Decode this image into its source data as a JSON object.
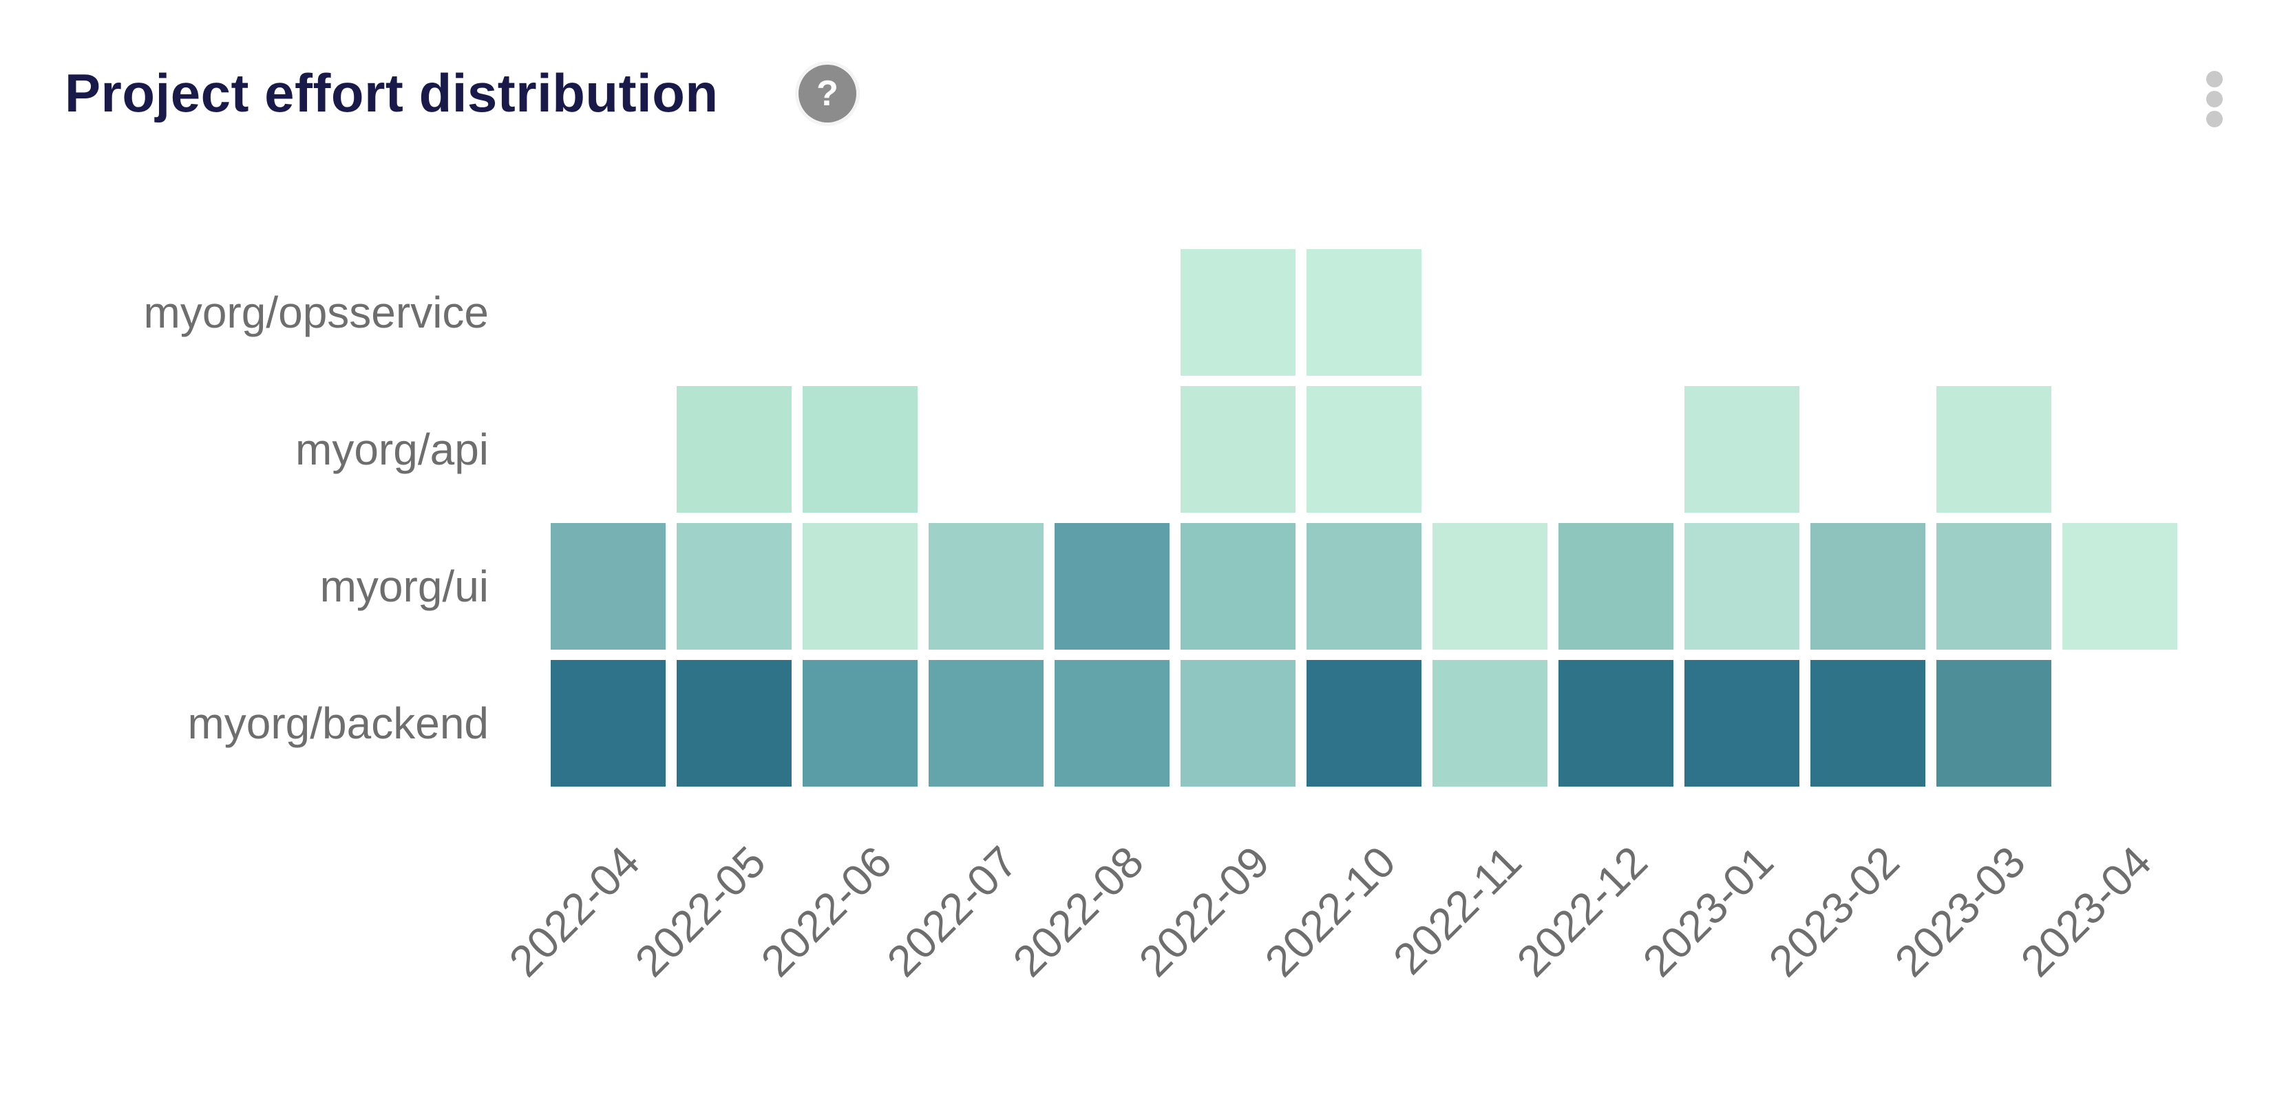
{
  "header": {
    "title": "Project effort distribution",
    "help_glyph": "?"
  },
  "colors": {
    "background": "#ffffff",
    "title_text": "#191a4a",
    "axis_label_text": "#6e6e6e",
    "help_badge_bg": "#8c8c8c",
    "help_badge_glyph": "#ffffff",
    "kebab_dots": "#c9c9c9"
  },
  "chart_data": {
    "type": "heatmap",
    "title": "Project effort distribution",
    "x_categories": [
      "2022-04",
      "2022-05",
      "2022-06",
      "2022-07",
      "2022-08",
      "2022-09",
      "2022-10",
      "2022-11",
      "2022-12",
      "2023-01",
      "2023-02",
      "2023-03",
      "2023-04"
    ],
    "y_categories": [
      "myorg/opsservice",
      "myorg/api",
      "myorg/ui",
      "myorg/backend"
    ],
    "x_label_rotation_deg": 45,
    "legend": false,
    "gridlines": false,
    "value_encoding": "cell color darkness encodes effort share; darker teal = more effort; no numeric labels shown; missing cells are blank",
    "color_scale_ends": {
      "low": "#c6ecdc",
      "high": "#2e7389"
    },
    "cells": {
      "myorg/opsservice": {
        "2022-09": "#c3ecda",
        "2022-10": "#c5eddc"
      },
      "myorg/api": {
        "2022-05": "#b5e4d1",
        "2022-06": "#b3e4d2",
        "2022-09": "#c0e9d8",
        "2022-10": "#c4ecdb",
        "2023-01": "#c0e9d9",
        "2023-03": "#c1ead8"
      },
      "myorg/ui": {
        "2022-04": "#77b1b3",
        "2022-05": "#9fd2c8",
        "2022-06": "#c0e8d6",
        "2022-07": "#9ed1c8",
        "2022-08": "#5f9fa9",
        "2022-09": "#8ec6c0",
        "2022-10": "#96cbc4",
        "2022-11": "#c4ead9",
        "2022-12": "#8ec5bd",
        "2023-01": "#b3e0d3",
        "2023-02": "#8dc2bd",
        "2023-03": "#9dcfc6",
        "2023-04": "#c6ecdc"
      },
      "myorg/backend": {
        "2022-04": "#2e7389",
        "2022-05": "#2f7389",
        "2022-06": "#5b9da7",
        "2022-07": "#64a4ab",
        "2022-08": "#63a3aa",
        "2022-09": "#8fc6c2",
        "2022-10": "#2e7389",
        "2022-11": "#a5d7cb",
        "2022-12": "#2f7389",
        "2023-01": "#2e7389",
        "2023-02": "#2f7389",
        "2023-03": "#4d8e99"
      }
    }
  }
}
